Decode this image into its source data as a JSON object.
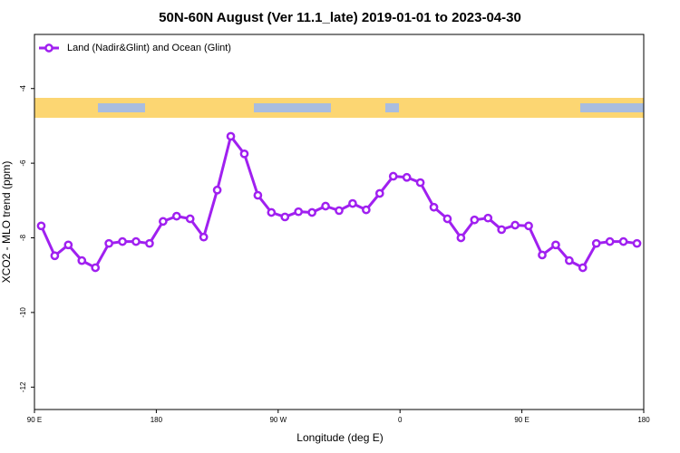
{
  "chart_data": {
    "type": "line",
    "title": "50N-60N August (Ver 11.1_late)   2019-01-01 to 2023-04-30",
    "xlabel": "Longitude (deg E)",
    "ylabel": "XCO2 - MLO trend (ppm)",
    "x": [
      95,
      105,
      115,
      125,
      135,
      145,
      155,
      165,
      175,
      185,
      195,
      205,
      215,
      225,
      235,
      245,
      255,
      265,
      275,
      285,
      295,
      305,
      315,
      325,
      335,
      345,
      355,
      365,
      375,
      385,
      395,
      405,
      415,
      425,
      435,
      445,
      455,
      465,
      475,
      485,
      495,
      505,
      515,
      525,
      535
    ],
    "series": [
      {
        "name": "Land (Nadir&Glint) and Ocean (Glint)",
        "color": "#a020f0",
        "values": [
          -7.68,
          -8.48,
          -8.19,
          -8.61,
          -8.8,
          -8.15,
          -8.1,
          -8.1,
          -8.15,
          -7.56,
          -7.42,
          -7.49,
          -7.98,
          -6.72,
          -5.28,
          -5.75,
          -6.86,
          -7.32,
          -7.44,
          -7.3,
          -7.32,
          -7.15,
          -7.27,
          -7.08,
          -7.25,
          -6.81,
          -6.35,
          -6.38,
          -6.52,
          -7.18,
          -7.49,
          -8.0,
          -7.52,
          -7.47,
          -7.78,
          -7.66,
          -7.68,
          -8.46,
          -8.19,
          -8.61,
          -8.8,
          -8.15,
          -8.1,
          -8.1,
          -8.15
        ]
      }
    ],
    "xlim": [
      90,
      540
    ],
    "xticks": [
      {
        "value": 90,
        "label": "90 E"
      },
      180,
      {
        "value": 270,
        "label": "90 W"
      },
      {
        "value": 360,
        "label": "0"
      },
      {
        "value": 450,
        "label": "90 E"
      },
      {
        "value": 540,
        "label": "180"
      }
    ],
    "ylim": [
      -12.6,
      -2.55
    ],
    "yticks": [
      -4,
      -6,
      -8,
      -10,
      -12
    ],
    "legend": "upper left",
    "grid": false
  }
}
